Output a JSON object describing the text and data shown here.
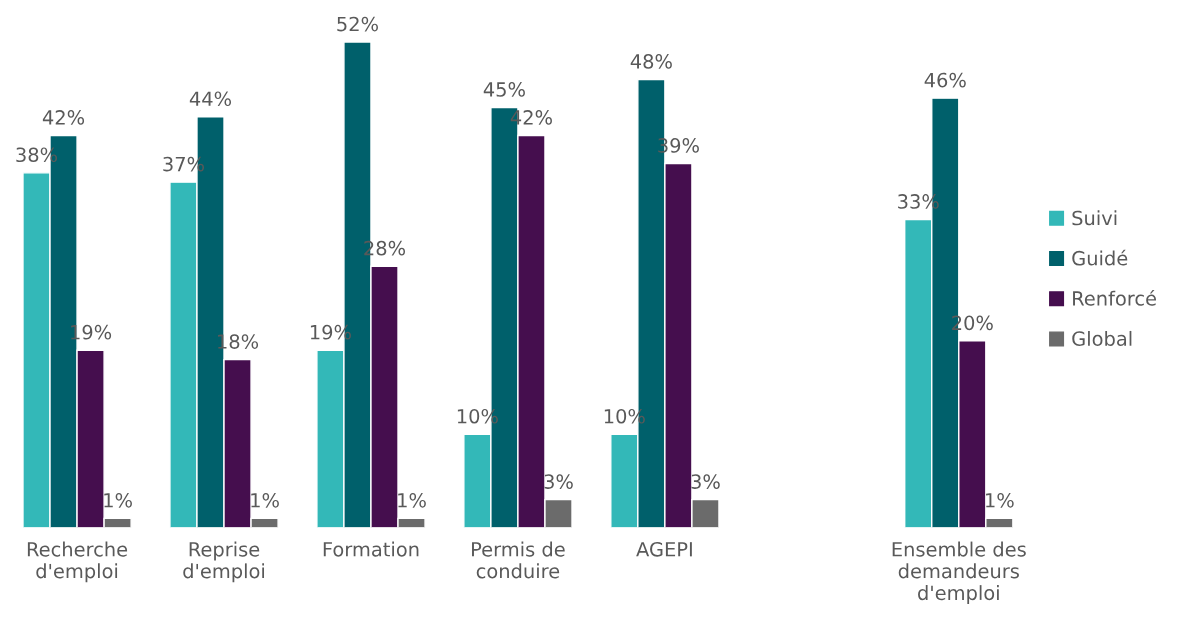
{
  "chart_data": {
    "type": "bar",
    "categories": [
      "Recherche\nd'emploi",
      "Reprise\nd'emploi",
      "Formation",
      "Permis de\nconduire",
      "AGEPI",
      null,
      "Ensemble des\ndemandeurs\nd'emploi"
    ],
    "series": [
      {
        "name": "Suivi",
        "color": "#33b8b8",
        "values": [
          38,
          37,
          19,
          10,
          10,
          null,
          33
        ],
        "value_labels": [
          "38%",
          "37%",
          "19%",
          "10%",
          "10%",
          null,
          "33%"
        ]
      },
      {
        "name": "Guidé",
        "color": "#00606b",
        "values": [
          42,
          44,
          52,
          45,
          48,
          null,
          46
        ],
        "value_labels": [
          "42%",
          "44%",
          "52%",
          "45%",
          "48%",
          null,
          "46%"
        ]
      },
      {
        "name": "Renforcé",
        "color": "#450e4e",
        "values": [
          19,
          18,
          28,
          42,
          39,
          null,
          20
        ],
        "value_labels": [
          "19%",
          "18%",
          "28%",
          "42%",
          "39%",
          null,
          "20%"
        ]
      },
      {
        "name": "Global",
        "color": "#6b6b6b",
        "values": [
          1,
          1,
          1,
          3,
          3,
          null,
          1
        ],
        "value_labels": [
          "1%",
          "1%",
          "1%",
          "3%",
          "3%",
          null,
          "1%"
        ]
      }
    ],
    "legend": "right",
    "grid": false
  }
}
